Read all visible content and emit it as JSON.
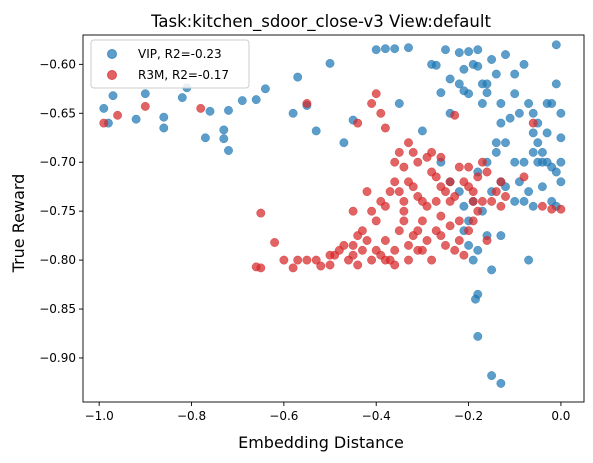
{
  "chart_data": {
    "type": "scatter",
    "title": "Task:kitchen_sdoor_close-v3 View:default",
    "xlabel": "Embedding Distance",
    "ylabel": "True Reward",
    "xlim": [
      -1.035,
      0.05
    ],
    "ylim": [
      -0.945,
      -0.57
    ],
    "xticks": [
      -1.0,
      -0.8,
      -0.6,
      -0.4,
      -0.2,
      0.0
    ],
    "xtick_labels": [
      "−1.0",
      "−0.8",
      "−0.6",
      "−0.4",
      "−0.2",
      "0.0"
    ],
    "yticks": [
      -0.6,
      -0.65,
      -0.7,
      -0.75,
      -0.8,
      -0.85,
      -0.9
    ],
    "ytick_labels": [
      "−0.60",
      "−0.65",
      "−0.70",
      "−0.75",
      "−0.80",
      "−0.85",
      "−0.90"
    ],
    "grid": false,
    "legend": "top-left",
    "series": [
      {
        "name": "VIP, R2=-0.23",
        "color": "#1f77b4",
        "points": [
          [
            -0.99,
            -0.645
          ],
          [
            -0.98,
            -0.66
          ],
          [
            -0.97,
            -0.632
          ],
          [
            -0.92,
            -0.656
          ],
          [
            -0.9,
            -0.63
          ],
          [
            -0.86,
            -0.654
          ],
          [
            -0.86,
            -0.665
          ],
          [
            -0.82,
            -0.634
          ],
          [
            -0.81,
            -0.624
          ],
          [
            -0.77,
            -0.675
          ],
          [
            -0.76,
            -0.648
          ],
          [
            -0.73,
            -0.667
          ],
          [
            -0.72,
            -0.647
          ],
          [
            -0.72,
            -0.688
          ],
          [
            -0.73,
            -0.676
          ],
          [
            -0.69,
            -0.637
          ],
          [
            -0.66,
            -0.636
          ],
          [
            -0.64,
            -0.625
          ],
          [
            -0.58,
            -0.65
          ],
          [
            -0.57,
            -0.613
          ],
          [
            -0.55,
            -0.642
          ],
          [
            -0.53,
            -0.668
          ],
          [
            -0.5,
            -0.599
          ],
          [
            -0.47,
            -0.68
          ],
          [
            -0.45,
            -0.657
          ],
          [
            -0.4,
            -0.585
          ],
          [
            -0.38,
            -0.584
          ],
          [
            -0.36,
            -0.584
          ],
          [
            -0.35,
            -0.64
          ],
          [
            -0.33,
            -0.583
          ],
          [
            -0.3,
            -0.668
          ],
          [
            -0.28,
            -0.6
          ],
          [
            -0.27,
            -0.601
          ],
          [
            -0.26,
            -0.629
          ],
          [
            -0.25,
            -0.585
          ],
          [
            -0.24,
            -0.615
          ],
          [
            -0.22,
            -0.588
          ],
          [
            -0.21,
            -0.605
          ],
          [
            -0.21,
            -0.627
          ],
          [
            -0.2,
            -0.587
          ],
          [
            -0.2,
            -0.63
          ],
          [
            -0.19,
            -0.6
          ],
          [
            -0.18,
            -0.585
          ],
          [
            -0.18,
            -0.602
          ],
          [
            -0.17,
            -0.62
          ],
          [
            -0.16,
            -0.629
          ],
          [
            -0.15,
            -0.595
          ],
          [
            -0.14,
            -0.61
          ],
          [
            -0.13,
            -0.64
          ],
          [
            -0.13,
            -0.66
          ],
          [
            -0.12,
            -0.59
          ],
          [
            -0.1,
            -0.61
          ],
          [
            -0.1,
            -0.63
          ],
          [
            -0.09,
            -0.65
          ],
          [
            -0.08,
            -0.6
          ],
          [
            -0.07,
            -0.64
          ],
          [
            -0.06,
            -0.65
          ],
          [
            -0.05,
            -0.66
          ],
          [
            -0.05,
            -0.68
          ],
          [
            -0.04,
            -0.69
          ],
          [
            -0.03,
            -0.7
          ],
          [
            -0.02,
            -0.64
          ],
          [
            -0.01,
            -0.62
          ],
          [
            -0.01,
            -0.58
          ],
          [
            0.0,
            -0.675
          ],
          [
            0.0,
            -0.7
          ],
          [
            0.0,
            -0.72
          ],
          [
            -0.02,
            -0.74
          ],
          [
            -0.04,
            -0.7
          ],
          [
            -0.06,
            -0.67
          ],
          [
            -0.08,
            -0.7
          ],
          [
            -0.1,
            -0.7
          ],
          [
            -0.12,
            -0.68
          ],
          [
            -0.13,
            -0.72
          ],
          [
            -0.15,
            -0.73
          ],
          [
            -0.16,
            -0.7
          ],
          [
            -0.18,
            -0.71
          ],
          [
            -0.19,
            -0.74
          ],
          [
            -0.2,
            -0.76
          ],
          [
            -0.21,
            -0.77
          ],
          [
            -0.22,
            -0.73
          ],
          [
            -0.24,
            -0.72
          ],
          [
            -0.26,
            -0.7
          ],
          [
            -0.2,
            -0.785
          ],
          [
            -0.19,
            -0.8
          ],
          [
            -0.18,
            -0.79
          ],
          [
            -0.17,
            -0.75
          ],
          [
            -0.16,
            -0.775
          ],
          [
            -0.14,
            -0.69
          ],
          [
            -0.12,
            -0.725
          ],
          [
            -0.1,
            -0.74
          ],
          [
            -0.09,
            -0.72
          ],
          [
            -0.08,
            -0.74
          ],
          [
            -0.07,
            -0.73
          ],
          [
            -0.06,
            -0.745
          ],
          [
            -0.06,
            -0.69
          ],
          [
            -0.05,
            -0.7
          ],
          [
            -0.03,
            -0.67
          ],
          [
            -0.02,
            -0.705
          ],
          [
            -0.01,
            -0.71
          ],
          [
            0.0,
            -0.65
          ],
          [
            -0.03,
            -0.64
          ],
          [
            -0.07,
            -0.8
          ],
          [
            -0.15,
            -0.81
          ],
          [
            -0.18,
            -0.835
          ],
          [
            -0.185,
            -0.84
          ],
          [
            -0.18,
            -0.878
          ],
          [
            -0.15,
            -0.918
          ],
          [
            -0.13,
            -0.926
          ],
          [
            -0.21,
            -0.745
          ],
          [
            -0.22,
            -0.62
          ],
          [
            -0.24,
            -0.65
          ],
          [
            -0.14,
            -0.68
          ],
          [
            -0.11,
            -0.655
          ],
          [
            -0.04,
            -0.725
          ],
          [
            -0.01,
            -0.745
          ],
          [
            -0.13,
            -0.775
          ],
          [
            -0.16,
            -0.62
          ],
          [
            -0.17,
            -0.64
          ]
        ]
      },
      {
        "name": "R3M, R2=-0.17",
        "color": "#d62728",
        "points": [
          [
            -0.99,
            -0.66
          ],
          [
            -0.96,
            -0.652
          ],
          [
            -0.9,
            -0.643
          ],
          [
            -0.78,
            -0.645
          ],
          [
            -0.65,
            -0.752
          ],
          [
            -0.66,
            -0.807
          ],
          [
            -0.65,
            -0.808
          ],
          [
            -0.62,
            -0.782
          ],
          [
            -0.6,
            -0.8
          ],
          [
            -0.58,
            -0.808
          ],
          [
            -0.55,
            -0.8
          ],
          [
            -0.55,
            -0.64
          ],
          [
            -0.52,
            -0.806
          ],
          [
            -0.5,
            -0.795
          ],
          [
            -0.5,
            -0.805
          ],
          [
            -0.48,
            -0.79
          ],
          [
            -0.46,
            -0.8
          ],
          [
            -0.45,
            -0.785
          ],
          [
            -0.44,
            -0.805
          ],
          [
            -0.43,
            -0.79
          ],
          [
            -0.42,
            -0.78
          ],
          [
            -0.41,
            -0.8
          ],
          [
            -0.4,
            -0.79
          ],
          [
            -0.39,
            -0.795
          ],
          [
            -0.38,
            -0.78
          ],
          [
            -0.37,
            -0.8
          ],
          [
            -0.36,
            -0.79
          ],
          [
            -0.35,
            -0.77
          ],
          [
            -0.34,
            -0.76
          ],
          [
            -0.33,
            -0.785
          ],
          [
            -0.32,
            -0.775
          ],
          [
            -0.31,
            -0.79
          ],
          [
            -0.3,
            -0.76
          ],
          [
            -0.29,
            -0.78
          ],
          [
            -0.28,
            -0.8
          ],
          [
            -0.27,
            -0.77
          ],
          [
            -0.26,
            -0.755
          ],
          [
            -0.25,
            -0.785
          ],
          [
            -0.24,
            -0.74
          ],
          [
            -0.23,
            -0.79
          ],
          [
            -0.22,
            -0.78
          ],
          [
            -0.21,
            -0.795
          ],
          [
            -0.2,
            -0.77
          ],
          [
            -0.19,
            -0.76
          ],
          [
            -0.18,
            -0.75
          ],
          [
            -0.17,
            -0.74
          ],
          [
            -0.16,
            -0.78
          ],
          [
            -0.15,
            -0.74
          ],
          [
            -0.14,
            -0.73
          ],
          [
            -0.13,
            -0.745
          ],
          [
            -0.12,
            -0.735
          ],
          [
            -0.35,
            -0.73
          ],
          [
            -0.34,
            -0.74
          ],
          [
            -0.33,
            -0.72
          ],
          [
            -0.32,
            -0.725
          ],
          [
            -0.31,
            -0.735
          ],
          [
            -0.3,
            -0.74
          ],
          [
            -0.29,
            -0.745
          ],
          [
            -0.28,
            -0.71
          ],
          [
            -0.27,
            -0.715
          ],
          [
            -0.26,
            -0.725
          ],
          [
            -0.25,
            -0.73
          ],
          [
            -0.24,
            -0.72
          ],
          [
            -0.23,
            -0.735
          ],
          [
            -0.22,
            -0.705
          ],
          [
            -0.21,
            -0.72
          ],
          [
            -0.2,
            -0.725
          ],
          [
            -0.19,
            -0.73
          ],
          [
            -0.18,
            -0.715
          ],
          [
            -0.17,
            -0.7
          ],
          [
            -0.42,
            -0.73
          ],
          [
            -0.41,
            -0.75
          ],
          [
            -0.4,
            -0.76
          ],
          [
            -0.39,
            -0.74
          ],
          [
            -0.38,
            -0.745
          ],
          [
            -0.37,
            -0.73
          ],
          [
            -0.36,
            -0.72
          ],
          [
            -0.45,
            -0.75
          ],
          [
            -0.47,
            -0.785
          ],
          [
            -0.43,
            -0.77
          ],
          [
            -0.44,
            -0.66
          ],
          [
            -0.41,
            -0.64
          ],
          [
            -0.4,
            -0.63
          ],
          [
            -0.39,
            -0.65
          ],
          [
            -0.38,
            -0.665
          ],
          [
            -0.36,
            -0.7
          ],
          [
            -0.35,
            -0.69
          ],
          [
            -0.34,
            -0.705
          ],
          [
            -0.33,
            -0.68
          ],
          [
            -0.32,
            -0.69
          ],
          [
            -0.31,
            -0.7
          ],
          [
            -0.29,
            -0.695
          ],
          [
            -0.28,
            -0.69
          ],
          [
            -0.26,
            -0.695
          ],
          [
            -0.23,
            -0.652
          ],
          [
            -0.2,
            -0.705
          ],
          [
            -0.16,
            -0.71
          ],
          [
            -0.13,
            -0.72
          ],
          [
            -0.08,
            -0.715
          ],
          [
            -0.04,
            -0.745
          ],
          [
            -0.02,
            -0.748
          ],
          [
            0.0,
            -0.748
          ],
          [
            -0.06,
            -0.66
          ],
          [
            -0.57,
            -0.8
          ],
          [
            -0.53,
            -0.8
          ],
          [
            -0.3,
            -0.79
          ],
          [
            -0.33,
            -0.8
          ],
          [
            -0.36,
            -0.805
          ],
          [
            -0.38,
            -0.8
          ],
          [
            -0.44,
            -0.775
          ],
          [
            -0.26,
            -0.775
          ],
          [
            -0.24,
            -0.765
          ],
          [
            -0.22,
            -0.76
          ],
          [
            -0.19,
            -0.74
          ],
          [
            -0.27,
            -0.74
          ],
          [
            -0.31,
            -0.77
          ],
          [
            -0.34,
            -0.75
          ],
          [
            -0.45,
            -0.795
          ],
          [
            -0.49,
            -0.795
          ]
        ]
      }
    ]
  }
}
